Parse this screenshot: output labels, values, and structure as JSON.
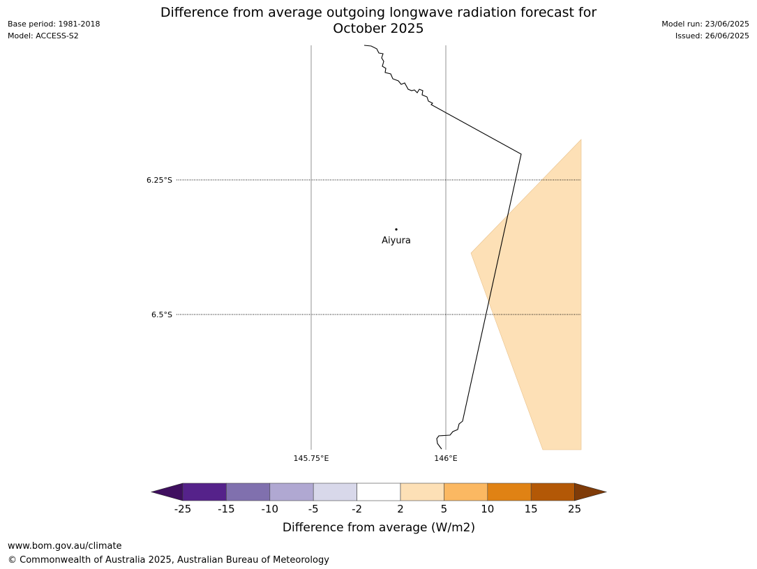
{
  "meta": {
    "base_period": "Base period: 1981-2018",
    "model": "Model: ACCESS-S2",
    "model_run": "Model run: 23/06/2025",
    "issued": "Issued: 26/06/2025"
  },
  "title": {
    "line1": "Difference from average outgoing longwave radiation forecast for",
    "line2": "October 2025"
  },
  "map": {
    "lat_labels": [
      "6.25°S",
      "6.5°S"
    ],
    "lon_labels": [
      "145.75°E",
      "146°E"
    ],
    "place": "Aiyura",
    "shaded_category": "2 to 5",
    "shade_color": "#fde0b6"
  },
  "colorbar": {
    "label": "Difference from average (W/m2)",
    "ticks": [
      "-25",
      "-15",
      "-10",
      "-5",
      "-2",
      "2",
      "5",
      "10",
      "15",
      "25"
    ],
    "colors": [
      "#3f0f5f",
      "#55228a",
      "#8070ae",
      "#b0a8d2",
      "#d8d8ea",
      "#ffffff",
      "#fde0b6",
      "#fbb862",
      "#e08214",
      "#b35806",
      "#7f3b08"
    ]
  },
  "footer": {
    "url": "www.bom.gov.au/climate",
    "copyright": "© Commonwealth of Australia 2025, Australian Bureau of Meteorology"
  }
}
